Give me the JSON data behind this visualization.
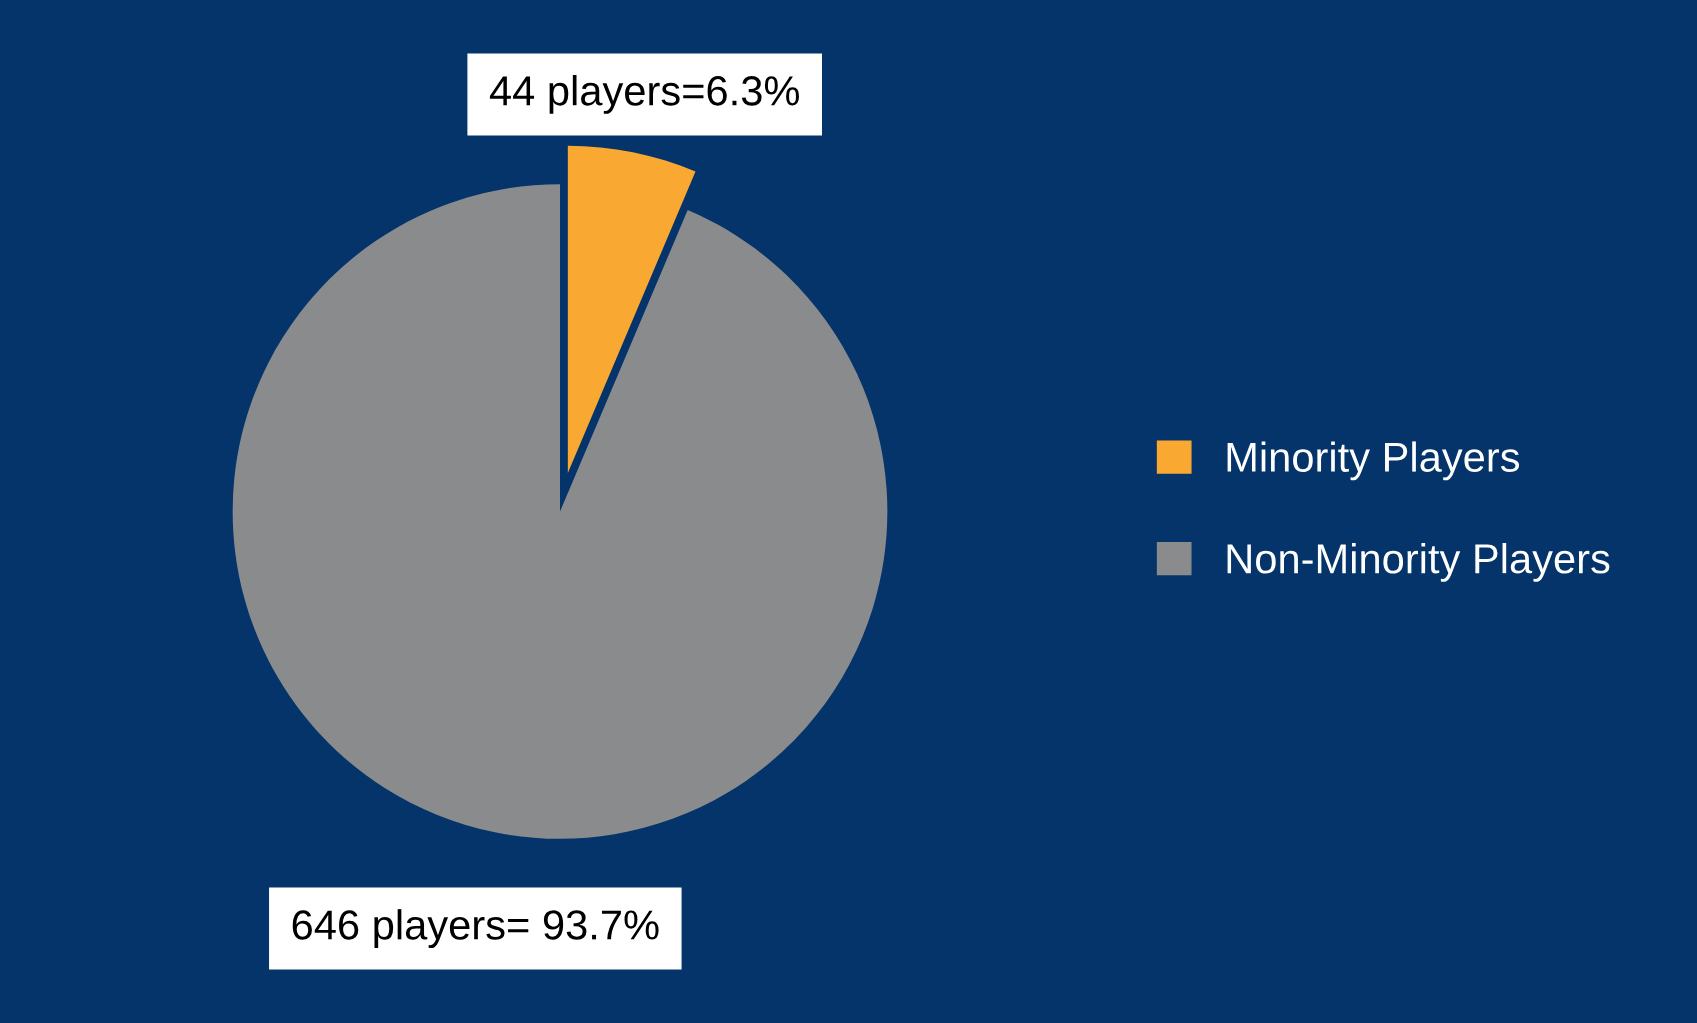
{
  "chart_data": {
    "type": "pie",
    "categories": [
      "Minority Players",
      "Non-Minority Players"
    ],
    "values": [
      44,
      646
    ],
    "colors": [
      "#f9a932",
      "#8a8b8d"
    ],
    "value_labels": [
      "44 players=6.3%",
      "646 players= 93.7%"
    ],
    "legend": "right"
  }
}
